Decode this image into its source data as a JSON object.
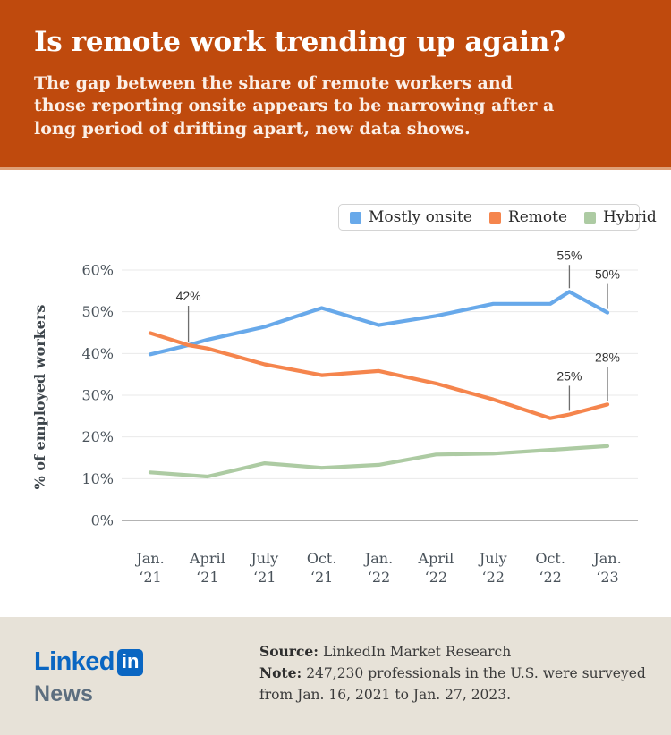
{
  "header": {
    "title": "Is remote work trending up again?",
    "subtitle": "The gap between the share of remote workers and those reporting onsite appears to be narrowing after a long period of drifting apart, new data shows."
  },
  "chart_data": {
    "type": "line",
    "title": "",
    "xlabel": "",
    "ylabel": "% of employed workers",
    "ylim": [
      0,
      60
    ],
    "grid": true,
    "legend_position": "top-right",
    "x_unit": "months since Jan. 2021 (0 = Jan. '21, 24 = Jan. '23)",
    "ytick_values": [
      0,
      10,
      20,
      30,
      40,
      50,
      60
    ],
    "ytick_labels": [
      "0%",
      "10%",
      "20%",
      "30%",
      "40%",
      "50%",
      "60%"
    ],
    "categories": [
      {
        "line1": "Jan.",
        "line2": "‘21",
        "month": 0
      },
      {
        "line1": "April",
        "line2": "‘21",
        "month": 3
      },
      {
        "line1": "July",
        "line2": "‘21",
        "month": 6
      },
      {
        "line1": "Oct.",
        "line2": "‘21",
        "month": 9
      },
      {
        "line1": "Jan.",
        "line2": "‘22",
        "month": 12
      },
      {
        "line1": "April",
        "line2": "‘22",
        "month": 15
      },
      {
        "line1": "July",
        "line2": "‘22",
        "month": 18
      },
      {
        "line1": "Oct.",
        "line2": "‘22",
        "month": 21
      },
      {
        "line1": "Jan.",
        "line2": "‘23",
        "month": 24
      }
    ],
    "series": [
      {
        "name": "Mostly onsite",
        "color": "#68A9EA",
        "points": [
          [
            0,
            39.8
          ],
          [
            2,
            42
          ],
          [
            3,
            43.3
          ],
          [
            6,
            46.4
          ],
          [
            9,
            50.9
          ],
          [
            12,
            46.8
          ],
          [
            15,
            49
          ],
          [
            18,
            51.9
          ],
          [
            21,
            51.9
          ],
          [
            22,
            54.8
          ],
          [
            24,
            49.8
          ]
        ]
      },
      {
        "name": "Remote",
        "color": "#F5854D",
        "points": [
          [
            0,
            44.9
          ],
          [
            2,
            42
          ],
          [
            3,
            41.2
          ],
          [
            6,
            37.4
          ],
          [
            9,
            34.8
          ],
          [
            12,
            35.8
          ],
          [
            15,
            32.8
          ],
          [
            18,
            29
          ],
          [
            21,
            24.5
          ],
          [
            22,
            25.4
          ],
          [
            24,
            27.8
          ]
        ]
      },
      {
        "name": "Hybrid",
        "color": "#ADCBA3",
        "points": [
          [
            0,
            11.5
          ],
          [
            3,
            10.5
          ],
          [
            6,
            13.7
          ],
          [
            9,
            12.6
          ],
          [
            12,
            13.3
          ],
          [
            15,
            15.8
          ],
          [
            18,
            16
          ],
          [
            21,
            16.9
          ],
          [
            24,
            17.8
          ]
        ]
      }
    ],
    "annotations": [
      {
        "label": "42%",
        "series": "Mostly onsite",
        "month": 2,
        "value": 42,
        "line_len": 40
      },
      {
        "label": "55%",
        "series": "Mostly onsite",
        "month": 22,
        "value": 54.8,
        "line_len": 26
      },
      {
        "label": "50%",
        "series": "Mostly onsite",
        "month": 24,
        "value": 49.8,
        "line_len": 28
      },
      {
        "label": "25%",
        "series": "Remote",
        "month": 22,
        "value": 25.4,
        "line_len": 28
      },
      {
        "label": "28%",
        "series": "Remote",
        "month": 24,
        "value": 27.8,
        "line_len": 38
      }
    ]
  },
  "footer": {
    "logo": {
      "wordmark": "Linked",
      "in_badge": "in",
      "subbrand": "News"
    },
    "source_label": "Source:",
    "source_text": "LinkedIn Market Research",
    "note_label": "Note:",
    "note_text": "247,230 professionals in the U.S. were surveyed from Jan. 16, 2021 to Jan. 27, 2023."
  },
  "colors": {
    "header_bg": "#BF4A0D",
    "header_text": "#FFFFFF",
    "subtitle_text": "#FBEFE7",
    "footer_bg": "#E7E2D8",
    "linkedin_blue": "#0A66C2",
    "news_gray": "#5C6E7F",
    "grid": "#EAEAEA",
    "axis_line": "#9A9A9A",
    "tick_text": "#49525A",
    "annotation_text": "#333333",
    "annotation_line": "#6E6E6E",
    "legend_border": "#D4D4D4"
  }
}
